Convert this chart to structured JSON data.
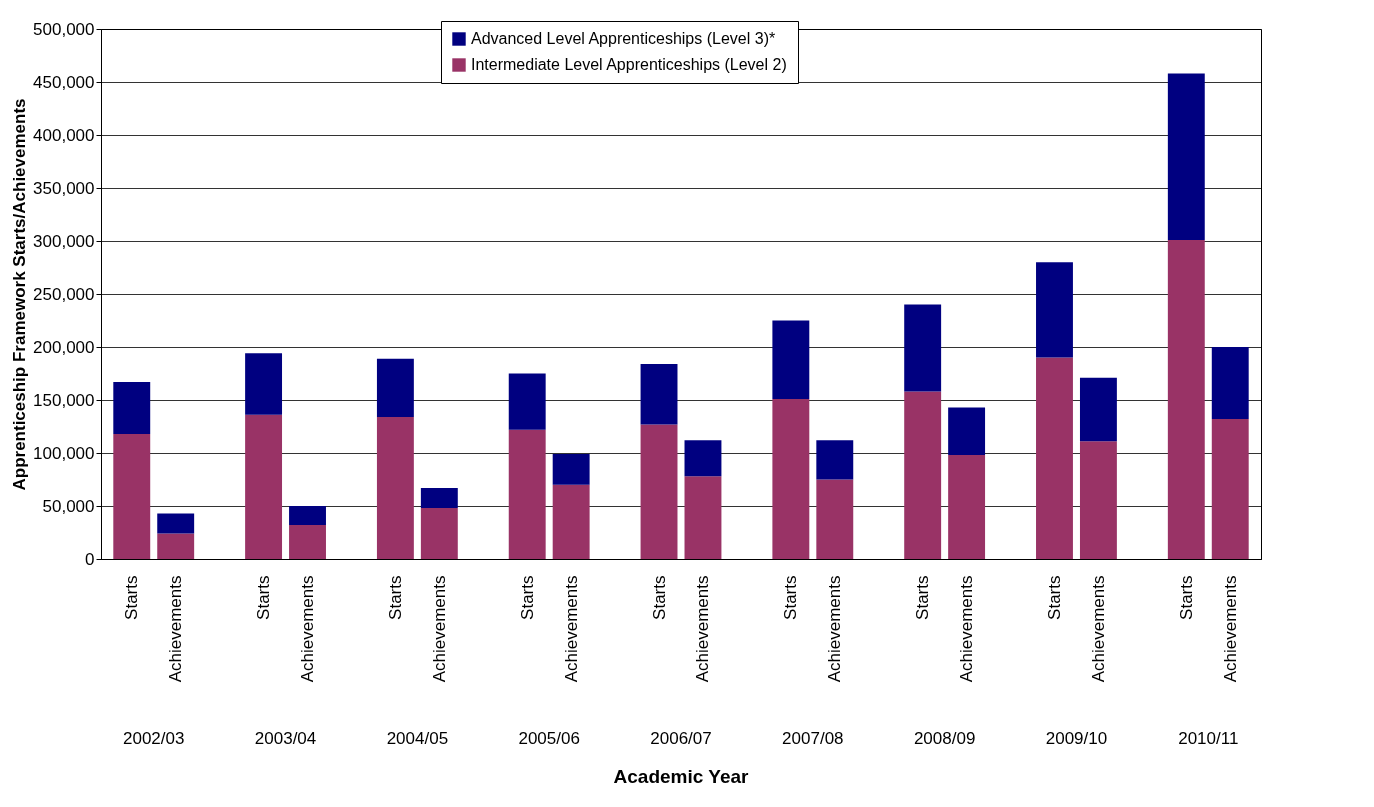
{
  "chart_data": {
    "type": "bar",
    "stacked": true,
    "xlabel": "Academic Year",
    "ylabel": "Apprenticeship Framework Starts/Achievements",
    "categories": [
      "Starts",
      "Achievements",
      "Starts",
      "Achievements",
      "Starts",
      "Achievements",
      "Starts",
      "Achievements",
      "Starts",
      "Achievements",
      "Starts",
      "Achievements",
      "Starts",
      "Achievements",
      "Starts",
      "Achievements",
      "Starts",
      "Achievements"
    ],
    "series": [
      {
        "name": "Intermediate Level Apprenticeships (Level 2)",
        "color": "#993366",
        "values": [
          118000,
          24000,
          136000,
          32000,
          134000,
          48000,
          122000,
          70000,
          127000,
          78000,
          151000,
          75000,
          158000,
          98000,
          190000,
          111000,
          301000,
          132000
        ]
      },
      {
        "name": "Advanced Level Apprenticeships (Level 3)*",
        "color": "#000080",
        "values": [
          49000,
          19000,
          58000,
          18000,
          55000,
          19000,
          53000,
          29000,
          57000,
          34000,
          74000,
          37000,
          82000,
          45000,
          90000,
          60000,
          157000,
          68000
        ]
      }
    ],
    "annotations": [
      "2002/03",
      "2003/04",
      "2004/05",
      "2005/06",
      "2006/07",
      "2007/08",
      "2008/09",
      "2009/10",
      "2010/11"
    ],
    "ylim": [
      0,
      500000
    ],
    "yticks": [
      {
        "value": 0,
        "label": "0"
      },
      {
        "value": 50000,
        "label": "50,000"
      },
      {
        "value": 100000,
        "label": "100,000"
      },
      {
        "value": 150000,
        "label": "150,000"
      },
      {
        "value": 200000,
        "label": "200,000"
      },
      {
        "value": 250000,
        "label": "250,000"
      },
      {
        "value": 300000,
        "label": "300,000"
      },
      {
        "value": 350000,
        "label": "350,000"
      },
      {
        "value": 400000,
        "label": "400,000"
      },
      {
        "value": 450000,
        "label": "450,000"
      },
      {
        "value": 500000,
        "label": "500,000"
      }
    ],
    "grid": "y",
    "legend": "top"
  }
}
